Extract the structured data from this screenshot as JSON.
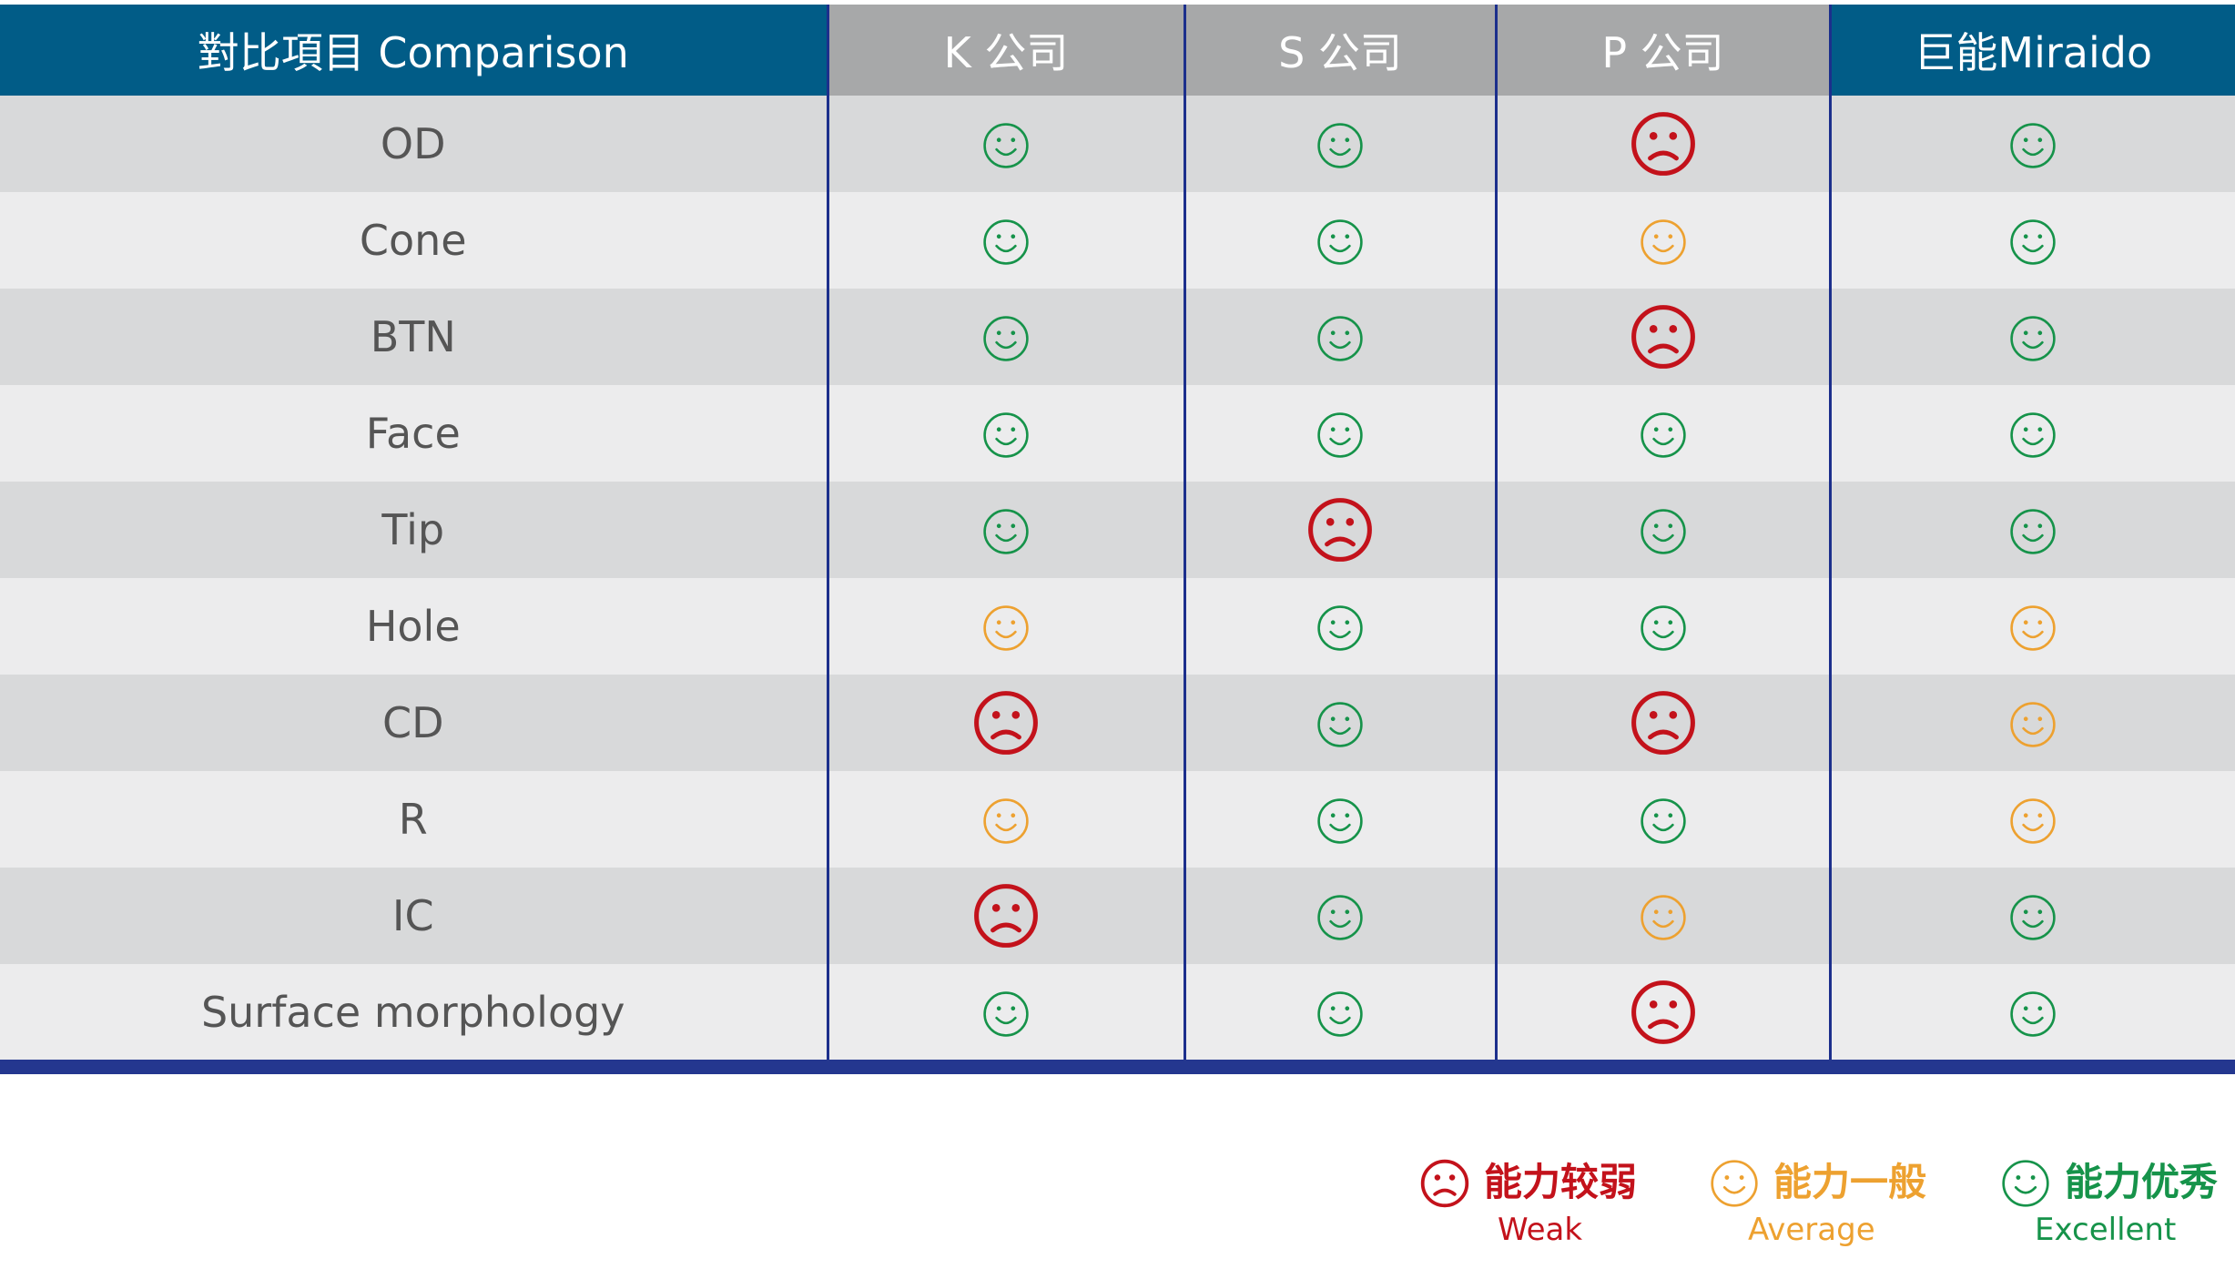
{
  "colors": {
    "header_blue": "#015c87",
    "header_grey": "#a7a8a9",
    "row_dark": "#d8d9da",
    "row_light": "#ececed",
    "divider": "#1c2f8c",
    "weak": "#c3121b",
    "average": "#eda130",
    "excellent": "#16934a"
  },
  "icons": {
    "weak": "frown-face-icon",
    "average": "smile-face-icon",
    "excellent": "smile-face-icon"
  },
  "table": {
    "columns": [
      "對比項目 Comparison",
      "K 公司",
      "S 公司",
      "P 公司",
      "巨能Miraido"
    ],
    "rows": [
      {
        "item": "OD",
        "ratings": [
          "excellent",
          "excellent",
          "weak",
          "excellent"
        ]
      },
      {
        "item": "Cone",
        "ratings": [
          "excellent",
          "excellent",
          "average",
          "excellent"
        ]
      },
      {
        "item": "BTN",
        "ratings": [
          "excellent",
          "excellent",
          "weak",
          "excellent"
        ]
      },
      {
        "item": "Face",
        "ratings": [
          "excellent",
          "excellent",
          "excellent",
          "excellent"
        ]
      },
      {
        "item": "Tip",
        "ratings": [
          "excellent",
          "weak",
          "excellent",
          "excellent"
        ]
      },
      {
        "item": "Hole",
        "ratings": [
          "average",
          "excellent",
          "excellent",
          "average"
        ]
      },
      {
        "item": "CD",
        "ratings": [
          "weak",
          "excellent",
          "weak",
          "average"
        ]
      },
      {
        "item": "R",
        "ratings": [
          "average",
          "excellent",
          "excellent",
          "average"
        ]
      },
      {
        "item": "IC",
        "ratings": [
          "weak",
          "excellent",
          "average",
          "excellent"
        ]
      },
      {
        "item": "Surface morphology",
        "ratings": [
          "excellent",
          "excellent",
          "weak",
          "excellent"
        ]
      }
    ]
  },
  "legend": {
    "weak": {
      "cn": "能力较弱",
      "en": "Weak"
    },
    "average": {
      "cn": "能力一般",
      "en": "Average"
    },
    "excellent": {
      "cn": "能力优秀",
      "en": "Excellent"
    }
  }
}
